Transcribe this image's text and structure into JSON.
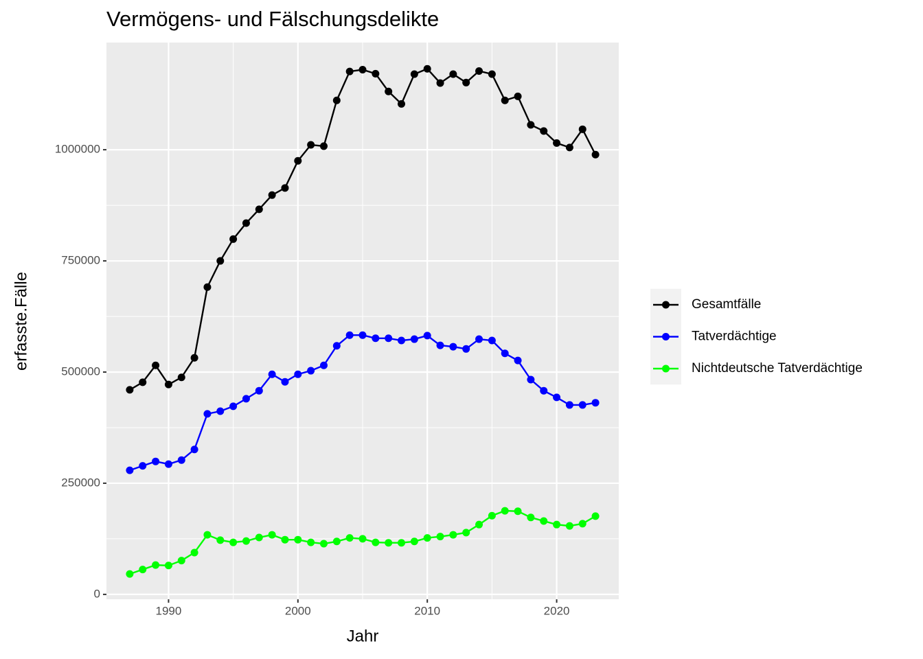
{
  "chart_data": {
    "type": "line",
    "title": "Vermögens- und Fälschungsdelikte",
    "x_label": "Jahr",
    "y_label": "erfasste.Fälle",
    "x": [
      1987,
      1988,
      1989,
      1990,
      1991,
      1992,
      1993,
      1994,
      1995,
      1996,
      1997,
      1998,
      1999,
      2000,
      2001,
      2002,
      2003,
      2004,
      2005,
      2006,
      2007,
      2008,
      2009,
      2010,
      2011,
      2012,
      2013,
      2014,
      2015,
      2016,
      2017,
      2018,
      2019,
      2020,
      2021,
      2022,
      2023
    ],
    "series": [
      {
        "name": "Gesamtfälle",
        "color": "#000000",
        "values": [
          460000,
          477000,
          515000,
          472000,
          488000,
          532000,
          691000,
          750000,
          799000,
          835000,
          866000,
          898000,
          914000,
          975000,
          1011000,
          1008000,
          1111000,
          1176000,
          1180000,
          1171000,
          1131000,
          1103000,
          1170000,
          1182000,
          1150000,
          1170000,
          1151000,
          1177000,
          1170000,
          1111000,
          1120000,
          1056000,
          1042000,
          1015000,
          1005000,
          1046000,
          989000
        ]
      },
      {
        "name": "Tatverdächtige",
        "color": "#0000ff",
        "values": [
          279000,
          289000,
          299000,
          293000,
          302000,
          326000,
          406000,
          412000,
          423000,
          440000,
          458000,
          495000,
          478000,
          495000,
          503000,
          515000,
          559000,
          583000,
          583000,
          576000,
          576000,
          571000,
          574000,
          582000,
          560000,
          557000,
          552000,
          574000,
          571000,
          542000,
          526000,
          483000,
          458000,
          443000,
          426000,
          426000,
          431000
        ]
      },
      {
        "name": "Nichtdeutsche Tatverdächtige",
        "color": "#00ff00",
        "values": [
          46000,
          56000,
          66000,
          65000,
          76000,
          94000,
          134000,
          122000,
          117000,
          120000,
          128000,
          134000,
          123000,
          123000,
          117000,
          114000,
          119000,
          127000,
          125000,
          117000,
          116000,
          116000,
          119000,
          127000,
          130000,
          134000,
          139000,
          157000,
          177000,
          188000,
          187000,
          173000,
          165000,
          157000,
          154000,
          159000,
          176000
        ]
      }
    ],
    "xlim": [
      1985.2,
      2024.8
    ],
    "ylim": [
      -11000,
      1241000
    ],
    "xticks": [
      1990,
      2000,
      2010,
      2020
    ],
    "yticks": [
      0,
      250000,
      500000,
      750000,
      1000000
    ],
    "grid": true,
    "legend": "right"
  }
}
